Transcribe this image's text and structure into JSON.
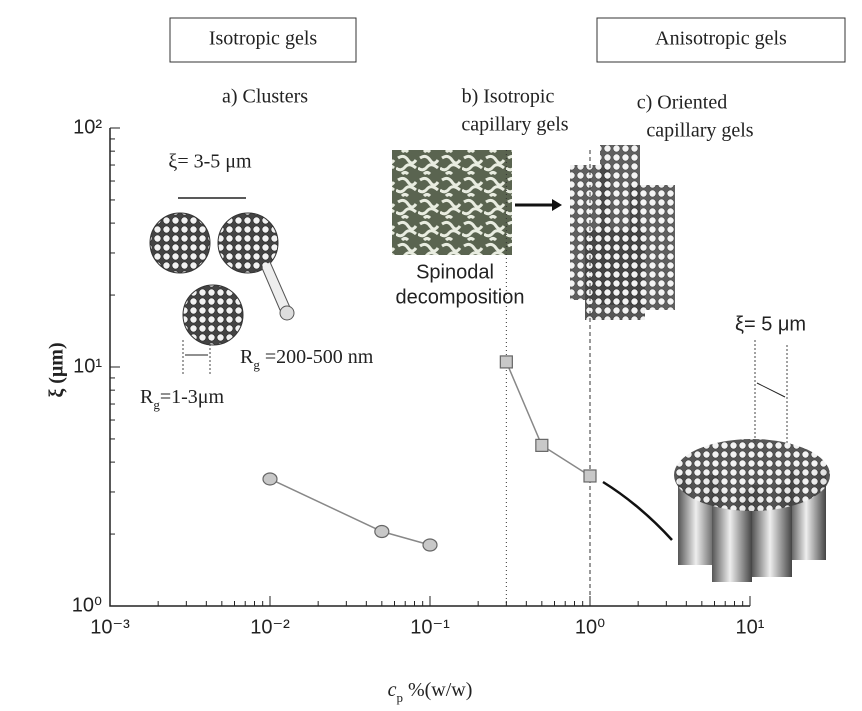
{
  "chart_data": {
    "type": "scatter",
    "log_x": true,
    "log_y": true,
    "xlim": [
      0.001,
      10
    ],
    "ylim": [
      1,
      100
    ],
    "xticks": [
      {
        "value": 0.001,
        "label": "10⁻³"
      },
      {
        "value": 0.01,
        "label": "10⁻²"
      },
      {
        "value": 0.1,
        "label": "10⁻¹"
      },
      {
        "value": 1,
        "label": "10⁰"
      },
      {
        "value": 10,
        "label": "10¹"
      }
    ],
    "yticks": [
      {
        "value": 1,
        "label": "10⁰"
      },
      {
        "value": 10,
        "label": "10¹"
      },
      {
        "value": 100,
        "label": "10²"
      }
    ],
    "xlabel": {
      "main": "c",
      "sub": "p",
      "rest": " %(w/w)"
    },
    "ylabel": "ξ (μm)",
    "series": [
      {
        "marker": "circle",
        "color": "#c8c8c8",
        "x": [
          0.01,
          0.05,
          0.1
        ],
        "values": [
          3.4,
          2.05,
          1.8
        ]
      },
      {
        "marker": "square",
        "color": "#c8c8c8",
        "x": [
          0.3,
          0.5,
          1.0
        ],
        "values": [
          10.5,
          4.7,
          3.5
        ]
      }
    ],
    "reference_lines": [
      0.3,
      1
    ],
    "boxes": [
      "Isotropic gels",
      "Anisotropic gels"
    ],
    "panels": [
      "a) Clusters",
      "b) Isotropic",
      "capillary gels",
      "c) Oriented",
      "capillary gels"
    ],
    "sizes": {
      "cluster_spacing": "ξ= 3-5 μm",
      "capillary_spacing": "ξ= 5 μm"
    },
    "radius_small": {
      "main": "R",
      "sub": "g",
      "rest": " =200-500 nm"
    },
    "radius_large": {
      "main": "R",
      "sub": "g",
      "rest": "=1-3μm"
    },
    "spinodal": [
      "Spinodal",
      "decomposition"
    ]
  }
}
